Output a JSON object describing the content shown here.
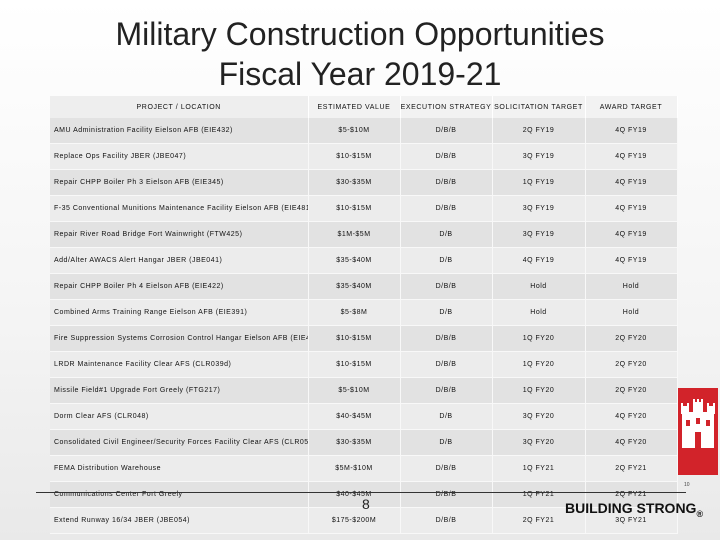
{
  "title_line1": "Military Construction Opportunities",
  "title_line2": "Fiscal Year 2019-21",
  "table": {
    "headers": [
      "PROJECT / LOCATION",
      "ESTIMATED VALUE",
      "EXECUTION STRATEGY",
      "SOLICITATION TARGET",
      "AWARD TARGET"
    ],
    "rows": [
      [
        "AMU Administration Facility Eielson AFB (EIE432)",
        "$5-$10M",
        "D/B/B",
        "2Q FY19",
        "4Q FY19"
      ],
      [
        "Replace Ops Facility JBER (JBE047)",
        "$10-$15M",
        "D/B/B",
        "3Q FY19",
        "4Q FY19"
      ],
      [
        "Repair CHPP Boiler Ph 3 Eielson AFB (EIE345)",
        "$30-$35M",
        "D/B/B",
        "1Q FY19",
        "4Q FY19"
      ],
      [
        "F-35 Conventional Munitions Maintenance Facility Eielson AFB (EIE481)",
        "$10-$15M",
        "D/B/B",
        "3Q FY19",
        "4Q FY19"
      ],
      [
        "Repair River Road Bridge Fort Wainwright (FTW425)",
        "$1M-$5M",
        "D/B",
        "3Q FY19",
        "4Q FY19"
      ],
      [
        "Add/Alter AWACS Alert Hangar JBER (JBE041)",
        "$35-$40M",
        "D/B",
        "4Q FY19",
        "4Q FY19"
      ],
      [
        "Repair CHPP Boiler Ph 4 Eielson AFB (EIE422)",
        "$35-$40M",
        "D/B/B",
        "Hold",
        "Hold"
      ],
      [
        "Combined Arms Training Range Eielson AFB (EIE391)",
        "$5-$8M",
        "D/B",
        "Hold",
        "Hold"
      ],
      [
        "Fire Suppression Systems Corrosion Control Hangar Eielson AFB (EIE430)",
        "$10-$15M",
        "D/B/B",
        "1Q FY20",
        "2Q FY20"
      ],
      [
        "LRDR Maintenance Facility Clear AFS (CLR039d)",
        "$10-$15M",
        "D/B/B",
        "1Q FY20",
        "2Q FY20"
      ],
      [
        "Missile Field#1 Upgrade Fort Greely (FTG217)",
        "$5-$10M",
        "D/B/B",
        "1Q FY20",
        "2Q FY20"
      ],
      [
        "Dorm Clear AFS (CLR048)",
        "$40-$45M",
        "D/B",
        "3Q FY20",
        "4Q FY20"
      ],
      [
        "Consolidated Civil Engineer/Security Forces Facility Clear AFS (CLR050)",
        "$30-$35M",
        "D/B",
        "3Q FY20",
        "4Q FY20"
      ],
      [
        "FEMA Distribution Warehouse",
        "$5M-$10M",
        "D/B/B",
        "1Q FY21",
        "2Q FY21"
      ],
      [
        "Communications Center Fort Greely",
        "$40-$45M",
        "D/B/B",
        "1Q FY21",
        "2Q FY21"
      ],
      [
        "Extend Runway 16/34 JBER (JBE054)",
        "$175-$200M",
        "D/B/B",
        "2Q FY21",
        "3Q FY21"
      ]
    ]
  },
  "small_page_mark": "10",
  "page_number": "8",
  "footer_brand": "BUILDING STRONG",
  "footer_mark": "®",
  "logo_icon": "castle-icon",
  "logo_color": "#d2232a"
}
